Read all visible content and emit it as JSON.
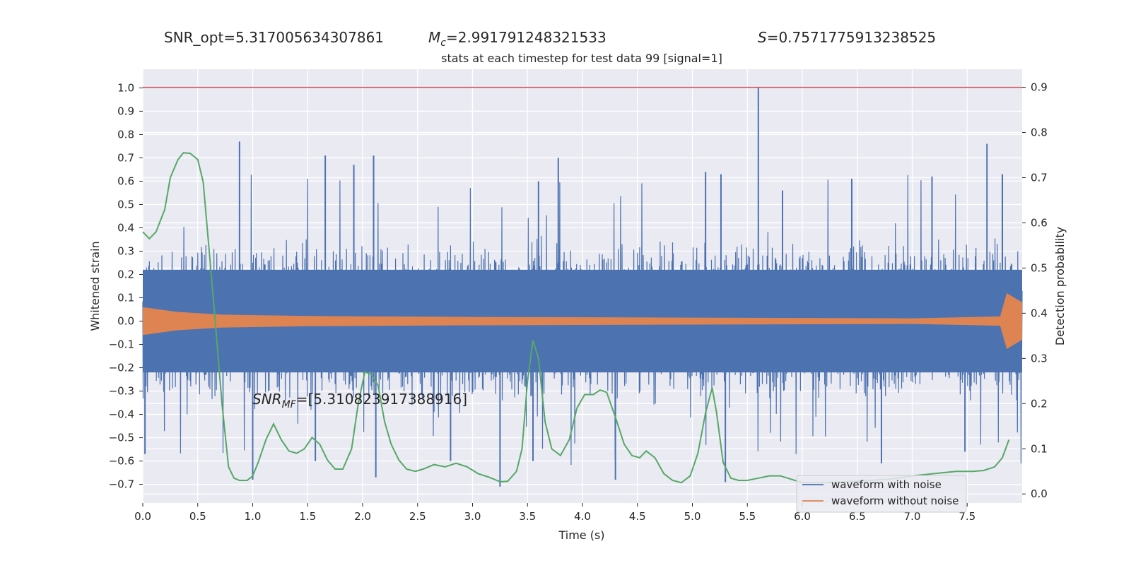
{
  "header": {
    "snr_opt": "SNR_opt=5.317005634307861",
    "mc": "=2.991791248321533",
    "mc_symbol": "M",
    "mc_sub": "c",
    "s": "=0.7571775913238525",
    "s_symbol": "S"
  },
  "chart_data": {
    "type": "line",
    "title": "stats at each timestep for test data 99 [signal=1]",
    "xlabel": "Time (s)",
    "ylabel_left": "Whitened strain",
    "ylabel_right": "Detection probability",
    "xlim": [
      0,
      8
    ],
    "ylim_left": [
      -0.78,
      1.08
    ],
    "ylim_right": [
      -0.02,
      0.94
    ],
    "xticks": [
      "0.0",
      "0.5",
      "1.0",
      "1.5",
      "2.0",
      "2.5",
      "3.0",
      "3.5",
      "4.0",
      "4.5",
      "5.0",
      "5.5",
      "6.0",
      "6.5",
      "7.0",
      "7.5"
    ],
    "yticks_left": [
      "1.0",
      "0.9",
      "0.8",
      "0.7",
      "0.6",
      "0.5",
      "0.4",
      "0.3",
      "0.2",
      "0.1",
      "0.0",
      "−0.1",
      "−0.2",
      "−0.3",
      "−0.4",
      "−0.5",
      "−0.6",
      "−0.7"
    ],
    "yticks_right": [
      "0.9",
      "0.8",
      "0.7",
      "0.6",
      "0.5",
      "0.4",
      "0.3",
      "0.2",
      "0.1",
      "0.0"
    ],
    "threshold": 0.9,
    "annotation": "=[5.310823917388916]",
    "annotation_symbol": "SNR",
    "annotation_sub": "MF",
    "legend": [
      "waveform with noise",
      "waveform without noise"
    ],
    "legend_position": "lower-right",
    "grid": true,
    "colors": {
      "noise": "#4c72b0",
      "signal": "#dd8452",
      "probability": "#55a868",
      "threshold": "#c44e52",
      "background": "#eaeaf2"
    },
    "series": [
      {
        "name": "waveform with noise",
        "axis": "left",
        "noise_band": [
          -0.22,
          0.22
        ],
        "spikes_positive": [
          {
            "x": 0.88,
            "y": 0.77
          },
          {
            "x": 1.66,
            "y": 0.71
          },
          {
            "x": 1.92,
            "y": 0.67
          },
          {
            "x": 2.1,
            "y": 0.71
          },
          {
            "x": 3.6,
            "y": 0.6
          },
          {
            "x": 3.78,
            "y": 0.7
          },
          {
            "x": 5.12,
            "y": 0.64
          },
          {
            "x": 5.26,
            "y": 0.63
          },
          {
            "x": 5.6,
            "y": 1.0
          },
          {
            "x": 5.82,
            "y": 0.56
          },
          {
            "x": 6.45,
            "y": 0.61
          },
          {
            "x": 7.18,
            "y": 0.62
          },
          {
            "x": 7.68,
            "y": 0.76
          },
          {
            "x": 7.82,
            "y": 0.63
          }
        ],
        "spikes_negative": [
          {
            "x": 0.02,
            "y": -0.57
          },
          {
            "x": 1.0,
            "y": -0.68
          },
          {
            "x": 1.57,
            "y": -0.6
          },
          {
            "x": 2.12,
            "y": -0.67
          },
          {
            "x": 2.8,
            "y": -0.6
          },
          {
            "x": 3.25,
            "y": -0.71
          },
          {
            "x": 3.55,
            "y": -0.6
          },
          {
            "x": 4.3,
            "y": -0.68
          },
          {
            "x": 5.3,
            "y": -0.69
          },
          {
            "x": 6.72,
            "y": -0.61
          },
          {
            "x": 7.48,
            "y": -0.56
          }
        ]
      },
      {
        "name": "waveform without noise",
        "axis": "left",
        "envelope": [
          {
            "x": 0.0,
            "y": 0.06
          },
          {
            "x": 0.3,
            "y": 0.04
          },
          {
            "x": 0.7,
            "y": 0.028
          },
          {
            "x": 1.5,
            "y": 0.022
          },
          {
            "x": 3.0,
            "y": 0.018
          },
          {
            "x": 5.0,
            "y": 0.015
          },
          {
            "x": 7.0,
            "y": 0.012
          },
          {
            "x": 7.8,
            "y": 0.02
          },
          {
            "x": 7.86,
            "y": 0.12
          },
          {
            "x": 8.0,
            "y": 0.08
          }
        ]
      },
      {
        "name": "detection probability",
        "axis": "right",
        "points": [
          {
            "x": 0.0,
            "y": 0.58
          },
          {
            "x": 0.06,
            "y": 0.565
          },
          {
            "x": 0.12,
            "y": 0.58
          },
          {
            "x": 0.2,
            "y": 0.63
          },
          {
            "x": 0.25,
            "y": 0.7
          },
          {
            "x": 0.32,
            "y": 0.74
          },
          {
            "x": 0.37,
            "y": 0.755
          },
          {
            "x": 0.43,
            "y": 0.754
          },
          {
            "x": 0.5,
            "y": 0.74
          },
          {
            "x": 0.55,
            "y": 0.69
          },
          {
            "x": 0.6,
            "y": 0.55
          },
          {
            "x": 0.66,
            "y": 0.38
          },
          {
            "x": 0.72,
            "y": 0.2
          },
          {
            "x": 0.78,
            "y": 0.06
          },
          {
            "x": 0.83,
            "y": 0.035
          },
          {
            "x": 0.88,
            "y": 0.03
          },
          {
            "x": 0.95,
            "y": 0.03
          },
          {
            "x": 1.0,
            "y": 0.04
          },
          {
            "x": 1.05,
            "y": 0.07
          },
          {
            "x": 1.12,
            "y": 0.12
          },
          {
            "x": 1.19,
            "y": 0.155
          },
          {
            "x": 1.26,
            "y": 0.12
          },
          {
            "x": 1.33,
            "y": 0.095
          },
          {
            "x": 1.4,
            "y": 0.09
          },
          {
            "x": 1.47,
            "y": 0.1
          },
          {
            "x": 1.54,
            "y": 0.125
          },
          {
            "x": 1.61,
            "y": 0.11
          },
          {
            "x": 1.68,
            "y": 0.075
          },
          {
            "x": 1.75,
            "y": 0.055
          },
          {
            "x": 1.82,
            "y": 0.055
          },
          {
            "x": 1.9,
            "y": 0.1
          },
          {
            "x": 1.96,
            "y": 0.2
          },
          {
            "x": 2.02,
            "y": 0.27
          },
          {
            "x": 2.08,
            "y": 0.265
          },
          {
            "x": 2.14,
            "y": 0.24
          },
          {
            "x": 2.2,
            "y": 0.16
          },
          {
            "x": 2.26,
            "y": 0.11
          },
          {
            "x": 2.33,
            "y": 0.075
          },
          {
            "x": 2.4,
            "y": 0.055
          },
          {
            "x": 2.48,
            "y": 0.05
          },
          {
            "x": 2.55,
            "y": 0.055
          },
          {
            "x": 2.65,
            "y": 0.065
          },
          {
            "x": 2.75,
            "y": 0.06
          },
          {
            "x": 2.85,
            "y": 0.068
          },
          {
            "x": 2.95,
            "y": 0.06
          },
          {
            "x": 3.05,
            "y": 0.045
          },
          {
            "x": 3.15,
            "y": 0.037
          },
          {
            "x": 3.25,
            "y": 0.027
          },
          {
            "x": 3.32,
            "y": 0.028
          },
          {
            "x": 3.4,
            "y": 0.05
          },
          {
            "x": 3.45,
            "y": 0.1
          },
          {
            "x": 3.5,
            "y": 0.25
          },
          {
            "x": 3.55,
            "y": 0.34
          },
          {
            "x": 3.6,
            "y": 0.3
          },
          {
            "x": 3.66,
            "y": 0.16
          },
          {
            "x": 3.72,
            "y": 0.1
          },
          {
            "x": 3.8,
            "y": 0.085
          },
          {
            "x": 3.88,
            "y": 0.12
          },
          {
            "x": 3.95,
            "y": 0.19
          },
          {
            "x": 4.02,
            "y": 0.22
          },
          {
            "x": 4.1,
            "y": 0.22
          },
          {
            "x": 4.16,
            "y": 0.23
          },
          {
            "x": 4.22,
            "y": 0.225
          },
          {
            "x": 4.3,
            "y": 0.17
          },
          {
            "x": 4.38,
            "y": 0.11
          },
          {
            "x": 4.45,
            "y": 0.085
          },
          {
            "x": 4.52,
            "y": 0.08
          },
          {
            "x": 4.58,
            "y": 0.095
          },
          {
            "x": 4.66,
            "y": 0.08
          },
          {
            "x": 4.74,
            "y": 0.045
          },
          {
            "x": 4.82,
            "y": 0.03
          },
          {
            "x": 4.9,
            "y": 0.025
          },
          {
            "x": 4.98,
            "y": 0.04
          },
          {
            "x": 5.05,
            "y": 0.09
          },
          {
            "x": 5.12,
            "y": 0.18
          },
          {
            "x": 5.18,
            "y": 0.235
          },
          {
            "x": 5.22,
            "y": 0.18
          },
          {
            "x": 5.28,
            "y": 0.07
          },
          {
            "x": 5.35,
            "y": 0.035
          },
          {
            "x": 5.42,
            "y": 0.03
          },
          {
            "x": 5.5,
            "y": 0.03
          },
          {
            "x": 5.6,
            "y": 0.035
          },
          {
            "x": 5.7,
            "y": 0.04
          },
          {
            "x": 5.8,
            "y": 0.04
          },
          {
            "x": 6.0,
            "y": 0.025
          },
          {
            "x": 6.2,
            "y": 0.025
          },
          {
            "x": 6.5,
            "y": 0.028
          },
          {
            "x": 6.8,
            "y": 0.033
          },
          {
            "x": 7.0,
            "y": 0.04
          },
          {
            "x": 7.2,
            "y": 0.045
          },
          {
            "x": 7.4,
            "y": 0.05
          },
          {
            "x": 7.55,
            "y": 0.05
          },
          {
            "x": 7.65,
            "y": 0.052
          },
          {
            "x": 7.75,
            "y": 0.06
          },
          {
            "x": 7.82,
            "y": 0.08
          },
          {
            "x": 7.88,
            "y": 0.12
          }
        ]
      }
    ]
  }
}
